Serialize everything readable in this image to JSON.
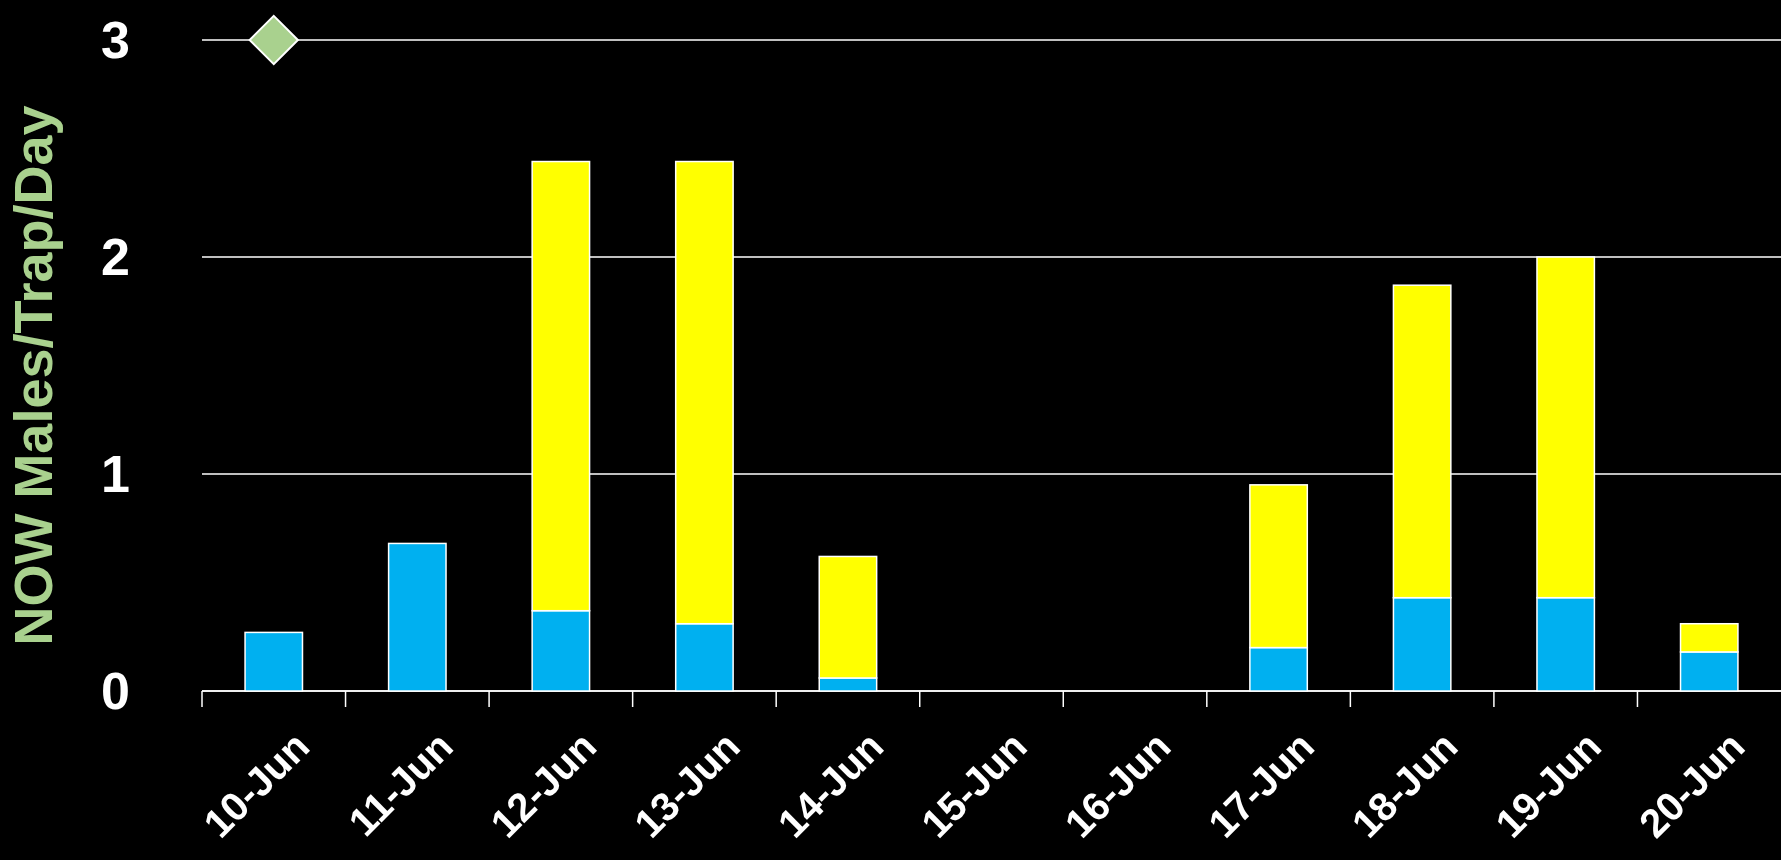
{
  "chart_data": {
    "type": "bar",
    "stacked": true,
    "ylabel": "NOW Males/Trap/Day",
    "categories": [
      "10-Jun",
      "11-Jun",
      "12-Jun",
      "13-Jun",
      "14-Jun",
      "15-Jun",
      "16-Jun",
      "17-Jun",
      "18-Jun",
      "19-Jun",
      "20-Jun"
    ],
    "series": [
      {
        "color": "#00b0f0",
        "values": [
          0.27,
          0.68,
          0.37,
          0.31,
          0.06,
          0,
          0,
          0.2,
          0.43,
          0.43,
          0.18
        ]
      },
      {
        "color": "#ffff00",
        "values": [
          0,
          0,
          2.07,
          2.13,
          0.56,
          0,
          0,
          0.75,
          1.44,
          1.57,
          0.13
        ]
      },
      {
        "type": "scatter",
        "marker": "diamond",
        "color": "#a9d18e",
        "x": [
          "10-Jun"
        ],
        "values": [
          3
        ]
      }
    ],
    "ylim": [
      0,
      3
    ],
    "yticks": [
      0,
      1,
      2,
      3
    ],
    "grid": "y"
  }
}
